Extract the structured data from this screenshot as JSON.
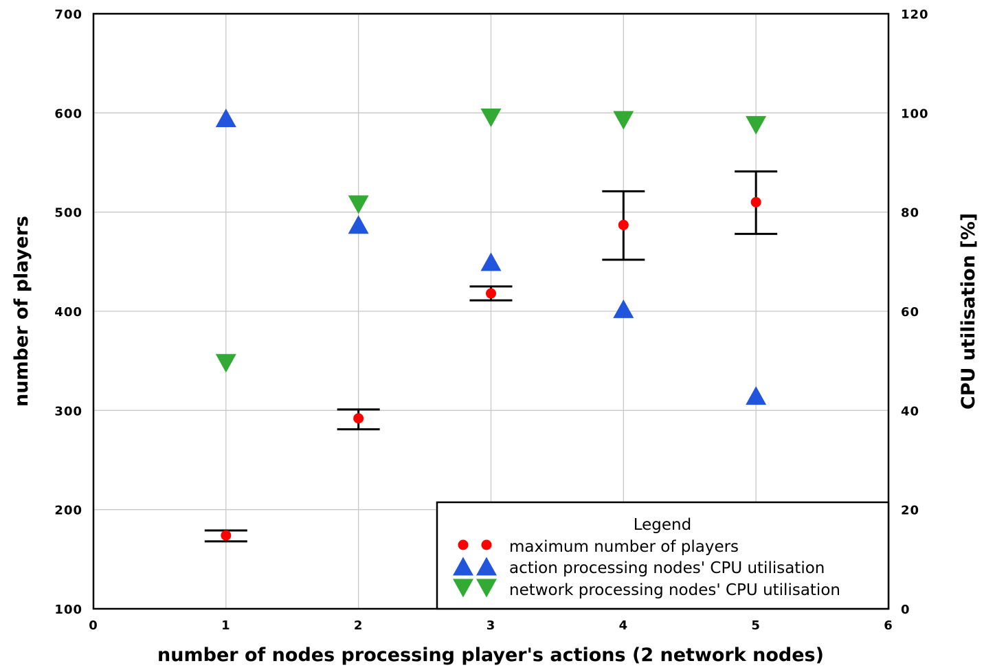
{
  "chart_data": {
    "type": "scatter",
    "title": "",
    "xlabel": "number of nodes processing player's actions (2 network nodes)",
    "ylabel": "number of players",
    "y2label": "CPU utilisation [%]",
    "xlim": [
      0,
      6
    ],
    "ylim": [
      100,
      700
    ],
    "y2lim": [
      0,
      120
    ],
    "x_ticks": [
      0,
      1,
      2,
      3,
      4,
      5,
      6
    ],
    "y_ticks": [
      100,
      200,
      300,
      400,
      500,
      600,
      700
    ],
    "y2_ticks": [
      0,
      20,
      40,
      60,
      80,
      100,
      120
    ],
    "grid": true,
    "legend_position": "bottom-right",
    "legend_title": "Legend",
    "series": [
      {
        "name": "maximum number of players",
        "axis": "left",
        "marker": "circle",
        "color": "#ff0000",
        "x": [
          1,
          2,
          3,
          4,
          5
        ],
        "y": [
          174,
          292,
          418,
          487,
          510
        ],
        "err_low": [
          168,
          281,
          411,
          452,
          478
        ],
        "err_high": [
          179,
          301,
          425,
          521,
          541
        ]
      },
      {
        "name": "action processing nodes' CPU utilisation",
        "axis": "right",
        "marker": "triangle-up",
        "color": "#2255dd",
        "x": [
          1,
          2,
          3,
          4,
          5
        ],
        "y": [
          99,
          77.5,
          70,
          60.5,
          43
        ]
      },
      {
        "name": "network processing nodes' CPU utilisation",
        "axis": "right",
        "marker": "triangle-down",
        "color": "#33aa33",
        "x": [
          1,
          2,
          3,
          4,
          5
        ],
        "y": [
          49.5,
          81.5,
          99,
          98.5,
          97.5
        ]
      }
    ]
  }
}
